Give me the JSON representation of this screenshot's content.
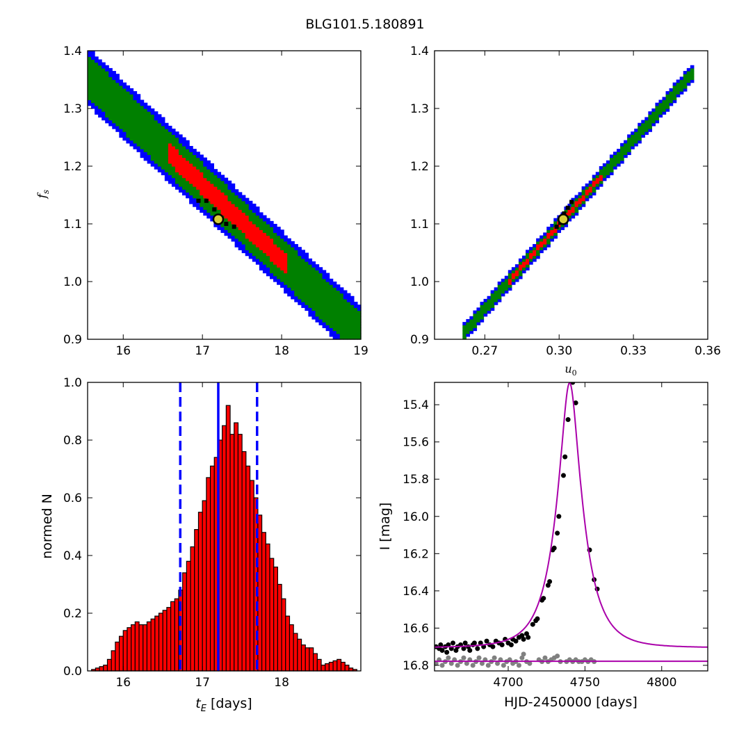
{
  "figure_title": "BLG101.5.180891",
  "colors": {
    "outer": "#0000ff",
    "mid": "#008000",
    "inner": "#ff0000",
    "core": "#000000",
    "bestfit_fill": "#d8cf3a",
    "vline": "#0000ff",
    "hist": "#ff0000",
    "model": "#aa00aa",
    "data_main": "#000000",
    "data_baseline": "#808080"
  },
  "chart_data": [
    {
      "type": "heatmap",
      "panel": "top-left",
      "xlabel": "",
      "ylabel": "f_s",
      "xlim": [
        15.55,
        19.0
      ],
      "ylim": [
        0.9,
        1.4
      ],
      "xticks": [
        "16",
        "17",
        "18",
        "19"
      ],
      "yticks": [
        "0.9",
        "1.0",
        "1.1",
        "1.2",
        "1.3",
        "1.4"
      ],
      "ridge": {
        "x_start": 15.6,
        "y_start": 1.35,
        "x_end": 18.95,
        "y_end": 0.915
      },
      "band_halfwidths": {
        "outer": 0.05,
        "mid": 0.038,
        "inner": 0.018
      },
      "inner_x_range": [
        16.55,
        18.05
      ],
      "core_points": [
        [
          16.95,
          1.14
        ],
        [
          17.05,
          1.14
        ],
        [
          17.15,
          1.125
        ],
        [
          17.3,
          1.1
        ],
        [
          17.4,
          1.095
        ]
      ],
      "best_fit": [
        17.2,
        1.108
      ]
    },
    {
      "type": "heatmap",
      "panel": "top-right",
      "xlabel": "u_0",
      "ylabel": "",
      "xlim": [
        0.2497,
        0.36
      ],
      "ylim": [
        0.9,
        1.4
      ],
      "xticks": [
        "0.27",
        "0.30",
        "0.33",
        "0.36"
      ],
      "yticks": [
        "0.9",
        "1.0",
        "1.1",
        "1.2",
        "1.3",
        "1.4"
      ],
      "ridge": {
        "x_start": 0.2622,
        "y_start": 0.915,
        "x_end": 0.3534,
        "y_end": 1.36
      },
      "band_halfwidths": {
        "outer": 0.016,
        "mid": 0.011,
        "inner": 0.005
      },
      "inner_x_range": [
        0.279,
        0.318
      ],
      "core_points": [
        [
          0.299,
          1.095
        ],
        [
          0.3005,
          1.102
        ],
        [
          0.302,
          1.118
        ],
        [
          0.3035,
          1.128
        ],
        [
          0.305,
          1.138
        ]
      ],
      "best_fit": [
        0.3017,
        1.108
      ]
    },
    {
      "type": "bar",
      "panel": "bottom-left",
      "xlabel": "t_E [days]",
      "ylabel": "normed N",
      "xlim": [
        15.55,
        19.0
      ],
      "ylim": [
        0.0,
        1.0
      ],
      "xticks": [
        "16",
        "17",
        "18"
      ],
      "yticks": [
        "0.0",
        "0.2",
        "0.4",
        "0.6",
        "0.8",
        "1.0"
      ],
      "bin_start": 15.55,
      "bin_width": 0.05,
      "values": [
        0.0,
        0.005,
        0.01,
        0.015,
        0.02,
        0.04,
        0.07,
        0.1,
        0.12,
        0.14,
        0.15,
        0.16,
        0.17,
        0.16,
        0.16,
        0.17,
        0.18,
        0.19,
        0.2,
        0.21,
        0.22,
        0.24,
        0.25,
        0.28,
        0.34,
        0.38,
        0.43,
        0.49,
        0.55,
        0.59,
        0.67,
        0.71,
        0.74,
        0.8,
        0.85,
        0.92,
        0.82,
        0.86,
        0.82,
        0.76,
        0.71,
        0.66,
        0.6,
        0.54,
        0.48,
        0.44,
        0.39,
        0.36,
        0.3,
        0.25,
        0.19,
        0.16,
        0.13,
        0.11,
        0.09,
        0.08,
        0.08,
        0.06,
        0.04,
        0.02,
        0.025,
        0.03,
        0.035,
        0.04,
        0.03,
        0.02,
        0.01,
        0.005,
        0.0
      ],
      "median_line": 17.2,
      "interval_lines": [
        16.72,
        17.69
      ]
    },
    {
      "type": "scatter",
      "panel": "bottom-right",
      "xlabel": "HJD-2450000 [days]",
      "ylabel": "I [mag]",
      "xlim": [
        4652,
        4830
      ],
      "ylim": [
        16.83,
        15.28
      ],
      "y_inverted": true,
      "xticks": [
        "4700",
        "4750",
        "4800"
      ],
      "yticks": [
        "15.4",
        "15.6",
        "15.8",
        "16.0",
        "16.2",
        "16.4",
        "16.6",
        "16.8"
      ],
      "model": {
        "t0": 4740.0,
        "tE": 17.2,
        "u0": 0.3,
        "baseline_mag": 16.705,
        "fs": 1.108
      },
      "baseline_model_mag": 16.778,
      "data_main": [
        [
          4653,
          16.7
        ],
        [
          4655,
          16.71
        ],
        [
          4656,
          16.69
        ],
        [
          4657,
          16.72
        ],
        [
          4659,
          16.7
        ],
        [
          4660,
          16.73
        ],
        [
          4661,
          16.69
        ],
        [
          4663,
          16.71
        ],
        [
          4664,
          16.68
        ],
        [
          4666,
          16.72
        ],
        [
          4667,
          16.7
        ],
        [
          4669,
          16.69
        ],
        [
          4671,
          16.71
        ],
        [
          4672,
          16.68
        ],
        [
          4674,
          16.7
        ],
        [
          4675,
          16.72
        ],
        [
          4677,
          16.69
        ],
        [
          4678,
          16.68
        ],
        [
          4680,
          16.71
        ],
        [
          4682,
          16.68
        ],
        [
          4684,
          16.7
        ],
        [
          4686,
          16.67
        ],
        [
          4688,
          16.69
        ],
        [
          4690,
          16.7
        ],
        [
          4692,
          16.67
        ],
        [
          4694,
          16.68
        ],
        [
          4696,
          16.69
        ],
        [
          4698,
          16.66
        ],
        [
          4700,
          16.68
        ],
        [
          4702,
          16.69
        ],
        [
          4703,
          16.66
        ],
        [
          4705,
          16.67
        ],
        [
          4707,
          16.65
        ],
        [
          4709,
          16.64
        ],
        [
          4710,
          16.66
        ],
        [
          4712,
          16.63
        ],
        [
          4713,
          16.65
        ],
        [
          4716,
          16.58
        ],
        [
          4718,
          16.56
        ],
        [
          4719,
          16.55
        ],
        [
          4722,
          16.45
        ],
        [
          4723,
          16.44
        ],
        [
          4726,
          16.37
        ],
        [
          4727,
          16.35
        ],
        [
          4729,
          16.18
        ],
        [
          4730,
          16.17
        ],
        [
          4732,
          16.09
        ],
        [
          4733,
          16.0
        ],
        [
          4736,
          15.78
        ],
        [
          4737,
          15.68
        ],
        [
          4739,
          15.48
        ],
        [
          4742,
          15.28
        ],
        [
          4744,
          15.39
        ],
        [
          4753,
          16.18
        ],
        [
          4756,
          16.34
        ],
        [
          4758,
          16.39
        ]
      ],
      "data_baseline": [
        [
          4653,
          16.79
        ],
        [
          4655,
          16.77
        ],
        [
          4657,
          16.8
        ],
        [
          4659,
          16.78
        ],
        [
          4661,
          16.76
        ],
        [
          4663,
          16.79
        ],
        [
          4665,
          16.77
        ],
        [
          4667,
          16.8
        ],
        [
          4669,
          16.78
        ],
        [
          4671,
          16.76
        ],
        [
          4673,
          16.79
        ],
        [
          4675,
          16.77
        ],
        [
          4677,
          16.8
        ],
        [
          4679,
          16.78
        ],
        [
          4681,
          16.76
        ],
        [
          4683,
          16.79
        ],
        [
          4685,
          16.77
        ],
        [
          4687,
          16.8
        ],
        [
          4689,
          16.78
        ],
        [
          4691,
          16.76
        ],
        [
          4693,
          16.79
        ],
        [
          4695,
          16.77
        ],
        [
          4697,
          16.8
        ],
        [
          4699,
          16.78
        ],
        [
          4701,
          16.77
        ],
        [
          4703,
          16.79
        ],
        [
          4705,
          16.78
        ],
        [
          4707,
          16.8
        ],
        [
          4709,
          16.76
        ],
        [
          4710,
          16.74
        ],
        [
          4712,
          16.78
        ],
        [
          4714,
          16.79
        ],
        [
          4720,
          16.77
        ],
        [
          4722,
          16.78
        ],
        [
          4724,
          16.76
        ],
        [
          4726,
          16.78
        ],
        [
          4728,
          16.77
        ],
        [
          4730,
          16.76
        ],
        [
          4732,
          16.75
        ],
        [
          4734,
          16.78
        ],
        [
          4738,
          16.78
        ],
        [
          4740,
          16.77
        ],
        [
          4742,
          16.78
        ],
        [
          4744,
          16.77
        ],
        [
          4746,
          16.78
        ],
        [
          4748,
          16.78
        ],
        [
          4750,
          16.77
        ],
        [
          4752,
          16.78
        ],
        [
          4754,
          16.77
        ],
        [
          4756,
          16.78
        ]
      ]
    }
  ]
}
